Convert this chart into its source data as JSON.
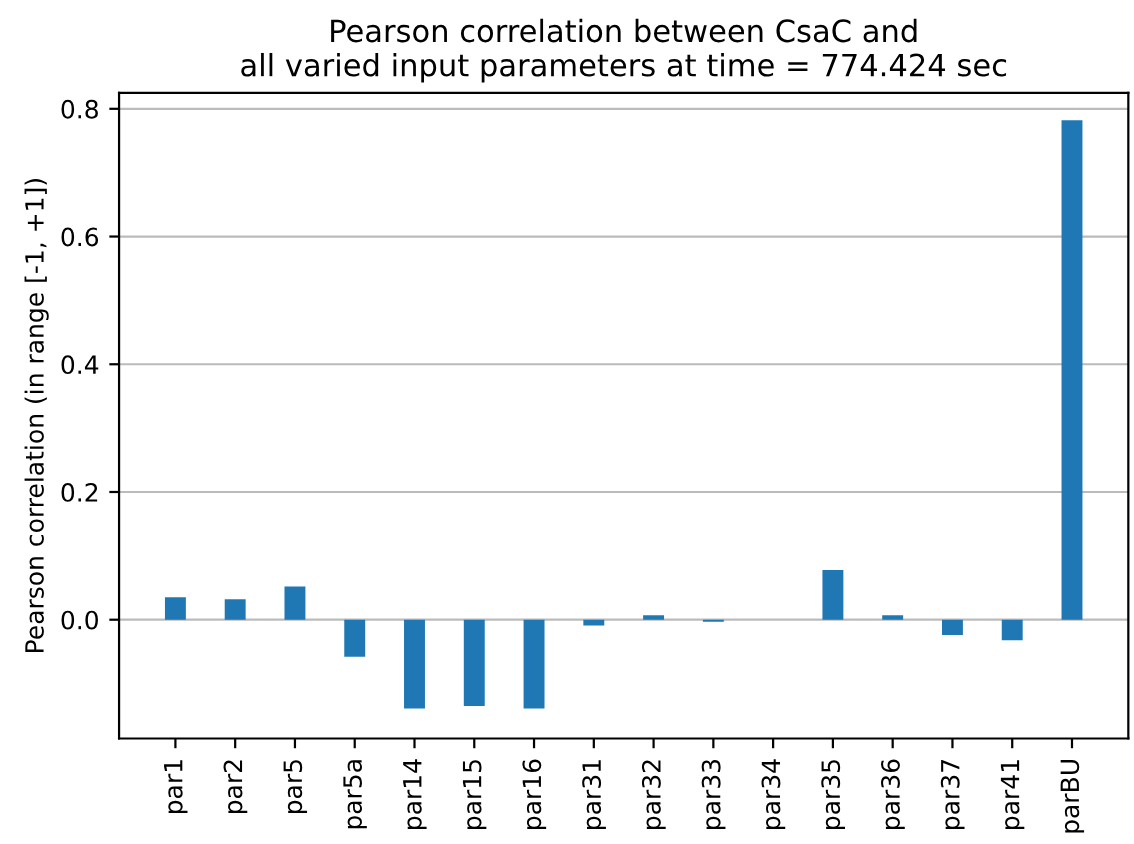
{
  "chart_data": {
    "type": "bar",
    "title": "Pearson correlation between CsaC and\nall varied input parameters at time = 774.424 sec",
    "ylabel": "Pearson correlation (in range [-1, +1])",
    "categories": [
      "par1",
      "par2",
      "par5",
      "par5a",
      "par14",
      "par15",
      "par16",
      "par31",
      "par32",
      "par33",
      "par34",
      "par35",
      "par36",
      "par37",
      "par41",
      "parBU"
    ],
    "values": [
      0.035,
      0.032,
      0.052,
      -0.058,
      -0.139,
      -0.135,
      -0.139,
      -0.009,
      0.007,
      -0.003,
      0,
      0.078,
      0.007,
      -0.024,
      -0.032,
      0.782
    ],
    "color": "#1f77b4",
    "ylim": [
      -0.186,
      0.825
    ],
    "yticks": [
      {
        "value": 0,
        "label": "0.0"
      },
      0.2,
      0.4,
      0.6,
      0.8
    ],
    "grid": "y"
  }
}
